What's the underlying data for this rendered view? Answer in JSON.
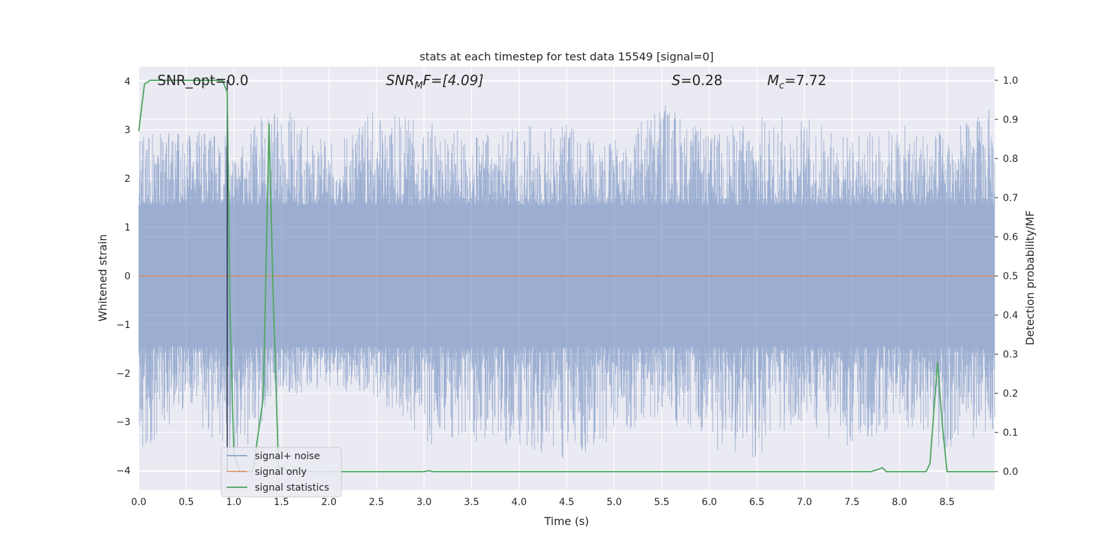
{
  "chart_data": {
    "type": "line",
    "title": "stats at each timestep for test data 15549 [signal=0]",
    "xlabel": "Time (s)",
    "ylabel": "Whitened strain",
    "y2label": "Detection probability/MF",
    "xlim": [
      0.0,
      9.0
    ],
    "ylim": [
      -4.4,
      4.3
    ],
    "y2lim": [
      -0.047,
      1.035
    ],
    "xticks": [
      0.0,
      0.5,
      1.0,
      1.5,
      2.0,
      2.5,
      3.0,
      3.5,
      4.0,
      4.5,
      5.0,
      5.5,
      6.0,
      6.5,
      7.0,
      7.5,
      8.0,
      8.5
    ],
    "yticks": [
      4,
      3,
      2,
      1,
      0,
      -1,
      -2,
      -3,
      -4
    ],
    "y2ticks": [
      1.0,
      0.9,
      0.8,
      0.7,
      0.6,
      0.5,
      0.4,
      0.3,
      0.2,
      0.1,
      0.0
    ],
    "annotations": {
      "snr_opt": "SNR_opt=0.0",
      "snr_mf_main": "SNR",
      "snr_mf_sub": "M",
      "snr_mf_rest": "F=[4.09]",
      "s_main": "S",
      "s_rest": "=0.28",
      "mc_main": "M",
      "mc_sub": "c",
      "mc_rest": "=7.72"
    },
    "legend": {
      "placement": "lower-left",
      "entries": [
        "signal+ noise",
        "signal only",
        "signal statistics"
      ]
    },
    "series": [
      {
        "name": "signal+ noise",
        "axis": "left",
        "color": "#4c72b0",
        "note_shape": "dense whitened noise, envelope values",
        "envelope": {
          "x": [
            0.0,
            0.5,
            1.0,
            1.5,
            2.0,
            2.5,
            3.0,
            3.5,
            4.0,
            4.5,
            5.0,
            5.5,
            6.0,
            6.5,
            7.0,
            7.5,
            8.0,
            8.5,
            9.0
          ],
          "upper": [
            2.9,
            3.0,
            2.9,
            3.5,
            2.8,
            3.4,
            3.2,
            2.9,
            3.1,
            3.2,
            2.8,
            3.7,
            2.9,
            3.3,
            3.3,
            2.9,
            3.1,
            3.0,
            3.5
          ],
          "lower": [
            -3.7,
            -2.8,
            -3.9,
            -2.5,
            -2.3,
            -2.5,
            -3.5,
            -3.4,
            -3.5,
            -3.8,
            -3.4,
            -2.9,
            -3.6,
            -3.8,
            -3.1,
            -3.6,
            -3.1,
            -3.6,
            -3.2
          ]
        }
      },
      {
        "name": "signal only",
        "axis": "left",
        "color": "#dd8452",
        "x": [
          0.0,
          9.0
        ],
        "y": [
          0.0,
          0.0
        ]
      },
      {
        "name": "signal statistics",
        "axis": "right",
        "color": "#55a868",
        "x": [
          0.0,
          0.06,
          0.12,
          0.3,
          0.5,
          0.7,
          0.88,
          0.93,
          0.96,
          1.0,
          1.06,
          1.2,
          1.31,
          1.37,
          1.41,
          1.47,
          1.6,
          2.0,
          3.0,
          3.05,
          3.1,
          4.0,
          5.0,
          6.0,
          7.0,
          7.7,
          7.77,
          7.82,
          7.86,
          8.0,
          8.28,
          8.32,
          8.4,
          8.45,
          8.5,
          8.6,
          9.0
        ],
        "y": [
          0.87,
          0.99,
          1.0,
          1.0,
          1.0,
          1.0,
          1.0,
          0.97,
          0.4,
          0.05,
          0.0,
          0.0,
          0.19,
          0.89,
          0.48,
          0.01,
          0.0,
          0.0,
          0.0,
          0.002,
          0.0,
          0.0,
          0.0,
          0.0,
          0.0,
          0.0,
          0.005,
          0.01,
          0.0,
          0.0,
          0.0,
          0.02,
          0.28,
          0.12,
          0.0,
          0.0,
          0.0
        ]
      },
      {
        "name": "",
        "axis": "right",
        "color": "#1f2a44",
        "note_shape": "vertical marker",
        "x": [
          0.93,
          0.93
        ],
        "y": [
          1.0,
          0.0
        ]
      }
    ],
    "colors": {
      "plot_bg": "#eaeaf2",
      "grid": "#ffffff",
      "text": "#262626"
    }
  }
}
